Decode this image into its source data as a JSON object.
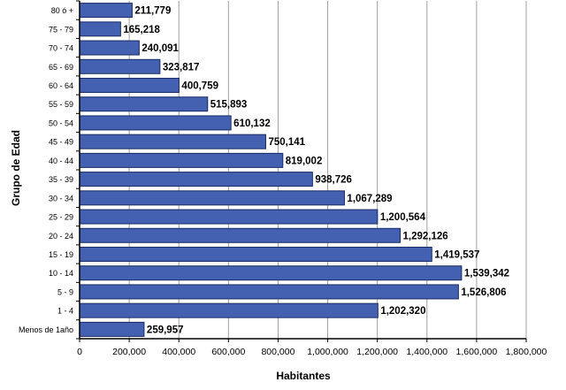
{
  "chart_data": {
    "type": "bar",
    "orientation": "horizontal",
    "title": "",
    "xlabel": "Habitantes",
    "ylabel": "Grupo de Edad",
    "xlim": [
      0,
      1800000
    ],
    "xticks": [
      0,
      200000,
      400000,
      600000,
      800000,
      1000000,
      1200000,
      1400000,
      1600000,
      1800000
    ],
    "xtick_labels": [
      "0",
      "200,000",
      "400,000",
      "600,000",
      "800,000",
      "1,000,000",
      "1,200,000",
      "1,400,000",
      "1,600,000",
      "1,800,000"
    ],
    "categories": [
      "80 ó +",
      "75 - 79",
      "70 - 74",
      "65 - 69",
      "60 - 64",
      "55 - 59",
      "50 - 54",
      "45 - 49",
      "40 - 44",
      "35 - 39",
      "30 - 34",
      "25 - 29",
      "20 - 24",
      "15 - 19",
      "10 - 14",
      "5 - 9",
      "1 - 4",
      "Menos de 1año"
    ],
    "values": [
      211779,
      165218,
      240091,
      323817,
      400759,
      515893,
      610132,
      750141,
      819002,
      938726,
      1067289,
      1200564,
      1292126,
      1419537,
      1539342,
      1526806,
      1202320,
      259957
    ],
    "data_labels": [
      "211,779",
      "165,218",
      "240,091",
      "323,817",
      "400,759",
      "515,893",
      "610,132",
      "750,141",
      "819,002",
      "938,726",
      "1,067,289",
      "1,200,564",
      "1,292,126",
      "1,419,537",
      "1,539,342",
      "1,526,806",
      "1,202,320",
      "259,957"
    ],
    "grid": "vertical",
    "legend": "none",
    "colors": {
      "bar": "#4361b0",
      "bar_edge": "#1a2a66",
      "grid": "#a0a0a0"
    }
  }
}
